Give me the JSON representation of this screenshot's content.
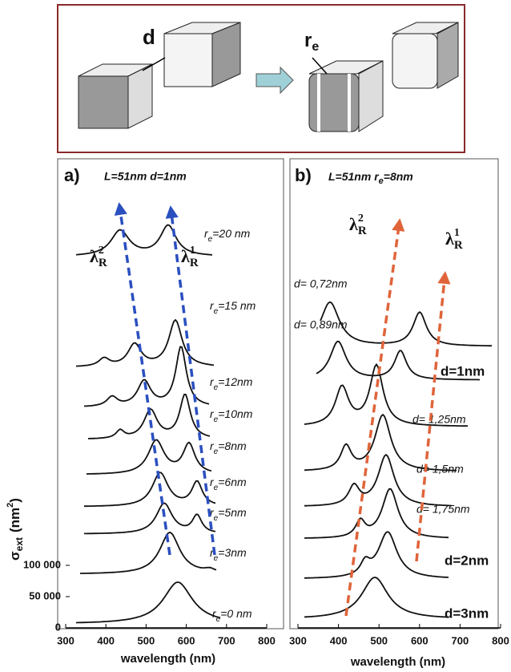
{
  "schematic": {
    "gap_label": "d",
    "radius_label": {
      "main": "r",
      "sub": "e"
    }
  },
  "panels": [
    {
      "letter": "a)",
      "title": "L=51nm d=1nm",
      "x_label": "wavelength (nm)",
      "y_label": {
        "main": "σ",
        "sub": "ext",
        "unit": "(nm",
        "sup": "2",
        "close": ")"
      },
      "xlim": [
        300,
        800
      ],
      "xticks": [
        300,
        400,
        500,
        600,
        700,
        800
      ],
      "ylim": [
        0,
        100000
      ],
      "yticks": [
        {
          "value": 0,
          "label": "0"
        },
        {
          "value": 50000,
          "label": "50 000"
        },
        {
          "value": 100000,
          "label": "100 000"
        }
      ],
      "lambda_labels": [
        {
          "symbol": "λ",
          "sub": "R",
          "sup": "2"
        },
        {
          "symbol": "λ",
          "sub": "R",
          "sup": "1"
        }
      ],
      "curve_labels": [
        {
          "main": "r",
          "sub": "e",
          "rest": "=0 nm"
        },
        {
          "main": "r",
          "sub": "e",
          "rest": "=3nm"
        },
        {
          "main": "r",
          "sub": "e",
          "rest": "=5nm"
        },
        {
          "main": "r",
          "sub": "e",
          "rest": "=6nm"
        },
        {
          "main": "r",
          "sub": "e",
          "rest": "=8nm"
        },
        {
          "main": "r",
          "sub": "e",
          "rest": "=10nm"
        },
        {
          "main": "r",
          "sub": "e",
          "rest": "=12nm"
        },
        {
          "main": "r",
          "sub": "e",
          "rest": "=15 nm"
        },
        {
          "main": "r",
          "sub": "e",
          "rest": "=20 nm"
        }
      ]
    },
    {
      "letter": "b)",
      "title": {
        "main": "L=51nm r",
        "sub": "e",
        "rest": "=8nm"
      },
      "x_label": "wavelength (nm)",
      "xlim": [
        300,
        800
      ],
      "xticks": [
        300,
        400,
        500,
        600,
        700,
        800
      ],
      "lambda_labels": [
        {
          "symbol": "λ",
          "sub": "R",
          "sup": "2"
        },
        {
          "symbol": "λ",
          "sub": "R",
          "sup": "1"
        }
      ],
      "curve_labels": [
        "d=3nm",
        "d=2nm",
        "d= 1,75nm",
        "d= 1,5nm",
        "d= 1,25nm",
        "d=1nm",
        "d= 0,89nm",
        "d= 0,72nm"
      ]
    }
  ]
}
